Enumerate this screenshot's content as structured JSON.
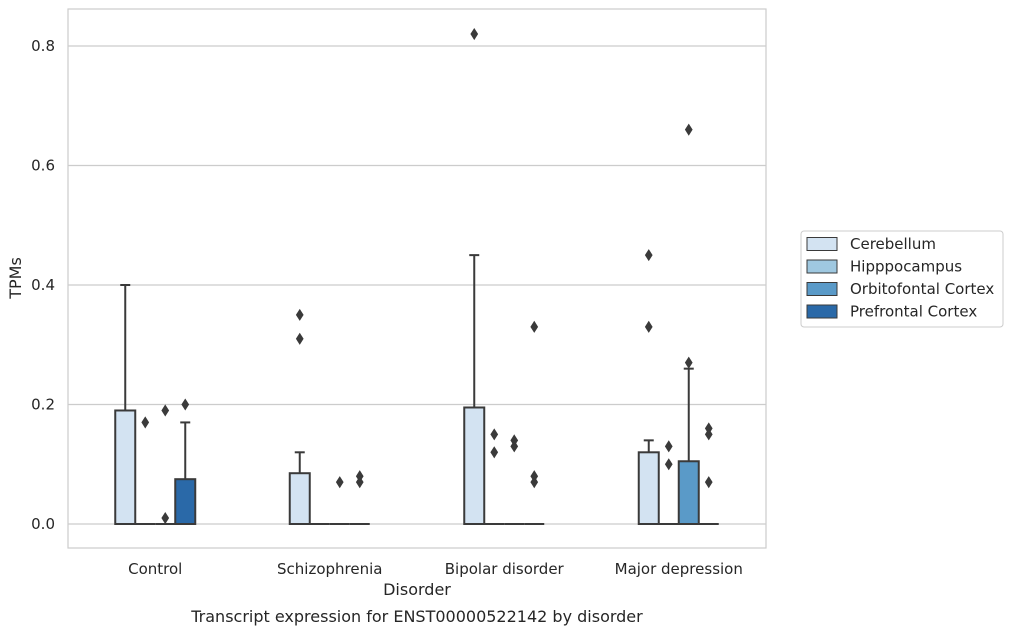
{
  "chart_data": {
    "type": "box",
    "title": "Transcript expression for ENST00000522142 by disorder",
    "xlabel": "Disorder",
    "ylabel": "TPMs",
    "ylim": [
      -0.04,
      0.86
    ],
    "yticks": [
      0.0,
      0.2,
      0.4,
      0.6,
      0.8
    ],
    "ytick_labels": [
      "0.0",
      "0.2",
      "0.4",
      "0.6",
      "0.8"
    ],
    "grid": "horizontal",
    "legend_position": "right",
    "categories": [
      "Control",
      "Schizophrenia",
      "Bipolar disorder",
      "Major depression"
    ],
    "series": [
      {
        "name": "Cerebellum",
        "color": "#d3e3f2",
        "boxes": [
          {
            "q1": 0.0,
            "median": 0.0,
            "q3": 0.19,
            "whisker_low": 0.0,
            "whisker_high": 0.4,
            "outliers": []
          },
          {
            "q1": 0.0,
            "median": 0.0,
            "q3": 0.085,
            "whisker_low": 0.0,
            "whisker_high": 0.12,
            "outliers": [
              0.31,
              0.35
            ]
          },
          {
            "q1": 0.0,
            "median": 0.0,
            "q3": 0.195,
            "whisker_low": 0.0,
            "whisker_high": 0.45,
            "outliers": [
              0.82
            ]
          },
          {
            "q1": 0.0,
            "median": 0.0,
            "q3": 0.12,
            "whisker_low": 0.0,
            "whisker_high": 0.14,
            "outliers": [
              0.33,
              0.45
            ]
          }
        ]
      },
      {
        "name": "Hipppocampus",
        "color": "#9fc8e0",
        "boxes": [
          {
            "q1": 0.0,
            "median": 0.0,
            "q3": 0.0,
            "whisker_low": 0.0,
            "whisker_high": 0.0,
            "outliers": [
              0.17
            ]
          },
          {
            "q1": 0.0,
            "median": 0.0,
            "q3": 0.0,
            "whisker_low": 0.0,
            "whisker_high": 0.0,
            "outliers": []
          },
          {
            "q1": 0.0,
            "median": 0.0,
            "q3": 0.0,
            "whisker_low": 0.0,
            "whisker_high": 0.0,
            "outliers": [
              0.12,
              0.15
            ]
          },
          {
            "q1": 0.0,
            "median": 0.0,
            "q3": 0.0,
            "whisker_low": 0.0,
            "whisker_high": 0.0,
            "outliers": [
              0.1,
              0.13
            ]
          }
        ]
      },
      {
        "name": "Orbitofontal Cortex",
        "color": "#5a9ac8",
        "boxes": [
          {
            "q1": 0.0,
            "median": 0.0,
            "q3": 0.0,
            "whisker_low": 0.0,
            "whisker_high": 0.0,
            "outliers": [
              0.01,
              0.19
            ]
          },
          {
            "q1": 0.0,
            "median": 0.0,
            "q3": 0.0,
            "whisker_low": 0.0,
            "whisker_high": 0.0,
            "outliers": [
              0.07
            ]
          },
          {
            "q1": 0.0,
            "median": 0.0,
            "q3": 0.0,
            "whisker_low": 0.0,
            "whisker_high": 0.0,
            "outliers": [
              0.13,
              0.14
            ]
          },
          {
            "q1": 0.0,
            "median": 0.0,
            "q3": 0.105,
            "whisker_low": 0.0,
            "whisker_high": 0.26,
            "outliers": [
              0.27,
              0.66
            ]
          }
        ]
      },
      {
        "name": "Prefrontal Cortex",
        "color": "#2a69a8",
        "boxes": [
          {
            "q1": 0.0,
            "median": 0.0,
            "q3": 0.075,
            "whisker_low": 0.0,
            "whisker_high": 0.17,
            "outliers": [
              0.2
            ]
          },
          {
            "q1": 0.0,
            "median": 0.0,
            "q3": 0.0,
            "whisker_low": 0.0,
            "whisker_high": 0.0,
            "outliers": [
              0.07,
              0.08
            ]
          },
          {
            "q1": 0.0,
            "median": 0.0,
            "q3": 0.0,
            "whisker_low": 0.0,
            "whisker_high": 0.0,
            "outliers": [
              0.07,
              0.08,
              0.33
            ]
          },
          {
            "q1": 0.0,
            "median": 0.0,
            "q3": 0.0,
            "whisker_low": 0.0,
            "whisker_high": 0.0,
            "outliers": [
              0.07,
              0.15,
              0.16
            ]
          }
        ]
      }
    ]
  }
}
